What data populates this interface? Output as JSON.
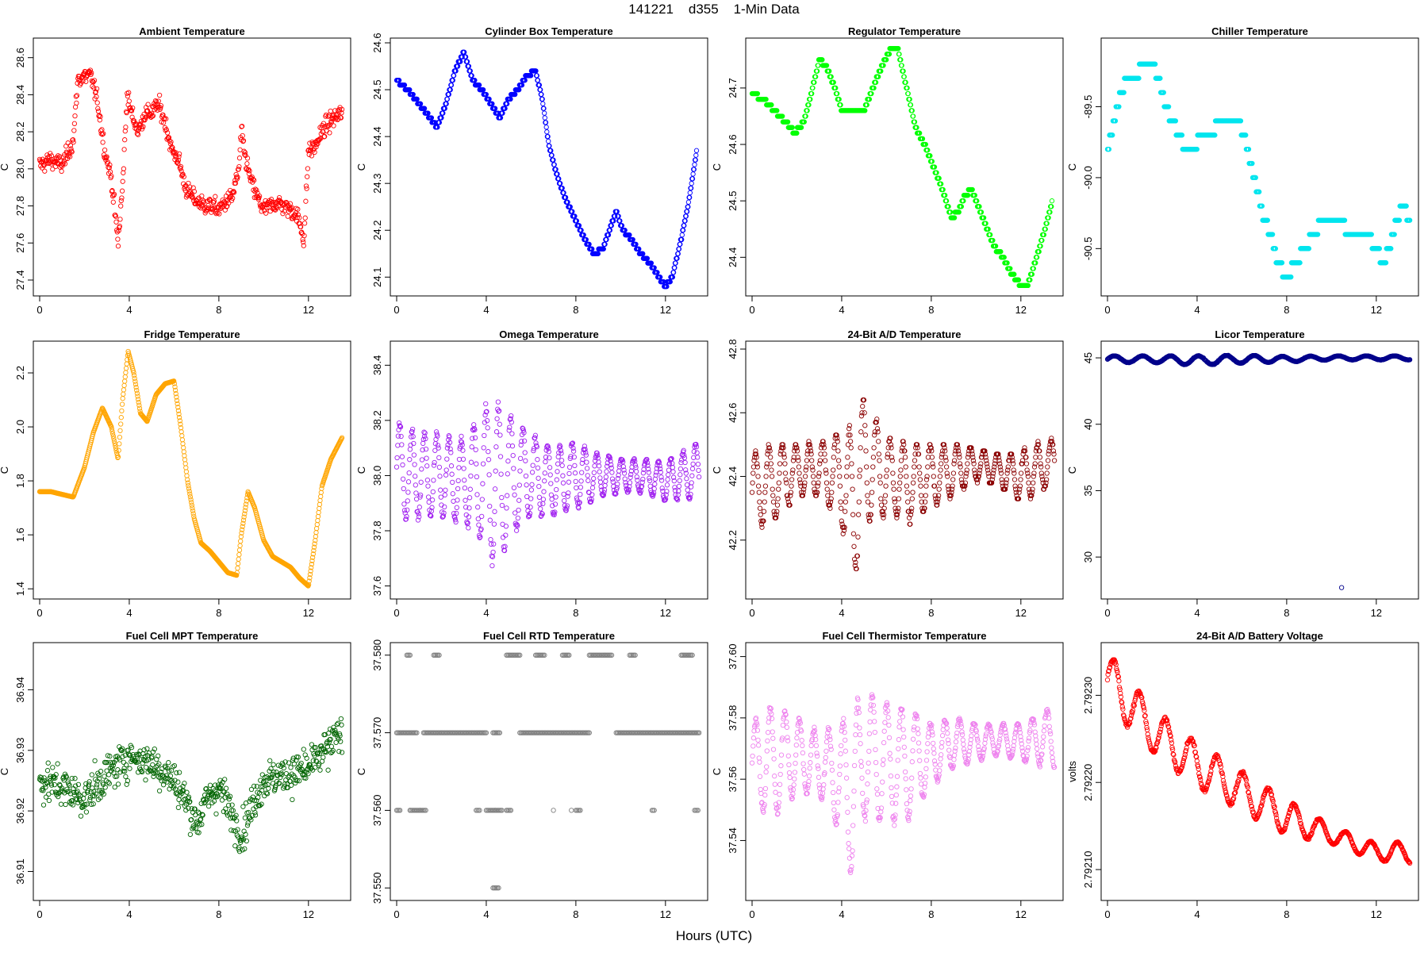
{
  "figure": {
    "title": "141221    d355    1-Min Data",
    "xlabel": "Hours (UTC)"
  },
  "chart_data": [
    {
      "type": "scatter",
      "title": "Ambient Temperature",
      "ylabel": "C",
      "color": "#ff0000",
      "xlim": [
        0,
        13.6
      ],
      "xticks": [
        0,
        4,
        8,
        12
      ],
      "ylim": [
        27.34,
        28.68
      ],
      "yticks": [
        27.4,
        27.6,
        27.8,
        28.0,
        28.2,
        28.4,
        28.6
      ],
      "ytick_labels": [
        "27.4",
        "27.6",
        "27.8",
        "28.0",
        "28.2",
        "28.4",
        "28.6"
      ],
      "mode": "noisy",
      "noise": 0.06,
      "x": [
        0,
        0.5,
        1,
        1.5,
        1.7,
        2,
        2.3,
        2.6,
        2.9,
        3.2,
        3.5,
        3.7,
        3.9,
        4.1,
        4.4,
        4.7,
        5,
        5.3,
        5.6,
        5.9,
        6.2,
        6.5,
        6.8,
        7.1,
        7.4,
        7.7,
        8,
        8.3,
        8.6,
        8.9,
        9,
        9.2,
        9.4,
        9.7,
        10,
        10.3,
        10.6,
        10.9,
        11.2,
        11.5,
        11.8,
        12,
        12.3,
        12.6,
        12.9,
        13.2,
        13.5
      ],
      "y": [
        28.02,
        28.05,
        28.02,
        28.15,
        28.48,
        28.5,
        28.5,
        28.35,
        28.1,
        27.95,
        27.6,
        27.9,
        28.4,
        28.3,
        28.2,
        28.3,
        28.3,
        28.35,
        28.25,
        28.1,
        28.05,
        27.9,
        27.85,
        27.82,
        27.8,
        27.8,
        27.78,
        27.82,
        27.85,
        28.0,
        28.2,
        28.05,
        27.95,
        27.85,
        27.78,
        27.8,
        27.82,
        27.8,
        27.78,
        27.75,
        27.62,
        28.1,
        28.12,
        28.2,
        28.25,
        28.28,
        28.3
      ]
    },
    {
      "type": "scatter",
      "title": "Cylinder Box Temperature",
      "ylabel": "C",
      "color": "#0000ff",
      "xlim": [
        0,
        13.6
      ],
      "xticks": [
        0,
        4,
        8,
        12
      ],
      "ylim": [
        24.07,
        24.6
      ],
      "yticks": [
        24.1,
        24.2,
        24.3,
        24.4,
        24.5,
        24.6
      ],
      "ytick_labels": [
        "24.1",
        "24.2",
        "24.3",
        "24.4",
        "24.5",
        "24.6"
      ],
      "mode": "smooth",
      "quantum": 0.01,
      "x": [
        0,
        0.5,
        1,
        1.5,
        1.8,
        2.2,
        2.6,
        3,
        3.4,
        3.8,
        4.2,
        4.6,
        5,
        5.4,
        5.8,
        6.2,
        6.5,
        6.8,
        7.2,
        7.6,
        8,
        8.4,
        8.8,
        9.2,
        9.5,
        9.8,
        10.1,
        10.5,
        10.9,
        11.3,
        11.7,
        12,
        12.3,
        12.7,
        13,
        13.4
      ],
      "y": [
        24.52,
        24.5,
        24.47,
        24.44,
        24.42,
        24.47,
        24.54,
        24.58,
        24.52,
        24.5,
        24.47,
        24.44,
        24.48,
        24.5,
        24.53,
        24.54,
        24.48,
        24.38,
        24.31,
        24.26,
        24.22,
        24.18,
        24.15,
        24.16,
        24.2,
        24.24,
        24.2,
        24.18,
        24.15,
        24.13,
        24.1,
        24.08,
        24.1,
        24.18,
        24.25,
        24.37
      ]
    },
    {
      "type": "scatter",
      "title": "Regulator Temperature",
      "ylabel": "C",
      "color": "#00ff00",
      "xlim": [
        0,
        13.6
      ],
      "xticks": [
        0,
        4,
        8,
        12
      ],
      "ylim": [
        24.34,
        24.78
      ],
      "yticks": [
        24.4,
        24.5,
        24.6,
        24.7
      ],
      "ytick_labels": [
        "24.4",
        "24.5",
        "24.6",
        "24.7"
      ],
      "mode": "smooth",
      "quantum": 0.01,
      "x": [
        0,
        0.5,
        1,
        1.5,
        1.9,
        2.3,
        2.7,
        3,
        3.3,
        3.7,
        4,
        4.5,
        5,
        5.4,
        5.8,
        6.2,
        6.5,
        6.9,
        7.3,
        7.7,
        8.1,
        8.5,
        8.9,
        9.2,
        9.5,
        9.8,
        10,
        10.4,
        10.8,
        11.2,
        11.6,
        12,
        12.3,
        12.7,
        13,
        13.4
      ],
      "y": [
        24.69,
        24.68,
        24.66,
        24.64,
        24.62,
        24.64,
        24.7,
        24.75,
        24.74,
        24.7,
        24.66,
        24.66,
        24.66,
        24.7,
        24.74,
        24.77,
        24.77,
        24.7,
        24.63,
        24.6,
        24.56,
        24.52,
        24.47,
        24.48,
        24.51,
        24.52,
        24.5,
        24.46,
        24.42,
        24.4,
        24.37,
        24.35,
        24.35,
        24.4,
        24.44,
        24.5
      ]
    },
    {
      "type": "scatter",
      "title": "Chiller Temperature",
      "ylabel": "C",
      "color": "#00e5ee",
      "xlim": [
        0,
        13.6
      ],
      "xticks": [
        0,
        4,
        8,
        12
      ],
      "ylim": [
        -90.8,
        -89.05
      ],
      "yticks": [
        -90.5,
        -90.0,
        -89.5
      ],
      "ytick_labels": [
        "-90.5",
        "-90.0",
        "-89.5"
      ],
      "mode": "smooth",
      "quantum": 0.1,
      "x": [
        0,
        0.3,
        0.6,
        0.9,
        1.2,
        1.6,
        2,
        2.3,
        2.6,
        2.9,
        3.2,
        3.5,
        3.8,
        4.2,
        4.6,
        5,
        5.4,
        5.8,
        6.1,
        6.4,
        6.7,
        7,
        7.3,
        7.6,
        8,
        8.4,
        8.8,
        9.2,
        9.6,
        10,
        10.4,
        10.8,
        11.2,
        11.6,
        12,
        12.3,
        12.6,
        12.9,
        13.2,
        13.5
      ],
      "y": [
        -89.8,
        -89.6,
        -89.4,
        -89.3,
        -89.3,
        -89.2,
        -89.2,
        -89.3,
        -89.5,
        -89.6,
        -89.7,
        -89.8,
        -89.8,
        -89.7,
        -89.7,
        -89.6,
        -89.6,
        -89.6,
        -89.7,
        -89.9,
        -90.1,
        -90.3,
        -90.4,
        -90.6,
        -90.7,
        -90.6,
        -90.5,
        -90.4,
        -90.3,
        -90.3,
        -90.3,
        -90.4,
        -90.4,
        -90.4,
        -90.5,
        -90.6,
        -90.5,
        -90.3,
        -90.2,
        -90.3
      ]
    },
    {
      "type": "scatter",
      "title": "Fridge Temperature",
      "ylabel": "C",
      "color": "#ffa500",
      "xlim": [
        0,
        13.6
      ],
      "xticks": [
        0,
        4,
        8,
        12
      ],
      "ylim": [
        1.38,
        2.3
      ],
      "yticks": [
        1.4,
        1.6,
        1.8,
        2.0,
        2.2
      ],
      "ytick_labels": [
        "1.4",
        "1.6",
        "1.8",
        "2.0",
        "2.2"
      ],
      "mode": "smooth",
      "quantum": 0,
      "x": [
        0,
        0.5,
        1,
        1.5,
        2,
        2.4,
        2.8,
        3.2,
        3.5,
        3.7,
        3.95,
        4.2,
        4.5,
        4.8,
        5.2,
        5.6,
        6,
        6.3,
        6.6,
        6.9,
        7.2,
        7.6,
        8,
        8.4,
        8.8,
        9,
        9.3,
        9.6,
        10,
        10.4,
        10.8,
        11.2,
        11.6,
        12,
        12.3,
        12.6,
        13,
        13.5
      ],
      "y": [
        1.76,
        1.76,
        1.75,
        1.74,
        1.85,
        1.98,
        2.07,
        2.0,
        1.88,
        2.1,
        2.28,
        2.2,
        2.05,
        2.02,
        2.12,
        2.16,
        2.17,
        2.0,
        1.8,
        1.66,
        1.57,
        1.54,
        1.5,
        1.46,
        1.45,
        1.6,
        1.76,
        1.7,
        1.58,
        1.52,
        1.5,
        1.48,
        1.44,
        1.41,
        1.58,
        1.78,
        1.88,
        1.96
      ]
    },
    {
      "type": "scatter",
      "title": "Omega Temperature",
      "ylabel": "C",
      "color": "#a020f0",
      "xlim": [
        0,
        13.6
      ],
      "xticks": [
        0,
        4,
        8,
        12
      ],
      "ylim": [
        37.57,
        38.47
      ],
      "yticks": [
        37.6,
        37.8,
        38.0,
        38.2,
        38.4
      ],
      "ytick_labels": [
        "37.6",
        "37.8",
        "38.0",
        "38.2",
        "38.4"
      ],
      "mode": "osc",
      "period": 0.55,
      "x": [
        0,
        1,
        2,
        3,
        4,
        4.5,
        5,
        6,
        7,
        8,
        9,
        10,
        11,
        12,
        13.5
      ],
      "y": [
        38.02,
        38.0,
        38.0,
        37.98,
        38.0,
        37.95,
        38.0,
        38.0,
        37.98,
        38.0,
        38.0,
        38.0,
        38.0,
        37.98,
        38.02
      ],
      "amp": [
        0.18,
        0.15,
        0.15,
        0.15,
        0.25,
        0.3,
        0.22,
        0.15,
        0.12,
        0.12,
        0.08,
        0.06,
        0.06,
        0.07,
        0.1
      ]
    },
    {
      "type": "scatter",
      "title": "24-Bit A/D Temperature",
      "ylabel": "C",
      "color": "#8b0000",
      "xlim": [
        0,
        13.6
      ],
      "xticks": [
        0,
        4,
        8,
        12
      ],
      "ylim": [
        42.03,
        42.81
      ],
      "yticks": [
        42.2,
        42.4,
        42.6,
        42.8
      ],
      "ytick_labels": [
        "42.2",
        "42.4",
        "42.6",
        "42.8"
      ],
      "mode": "osc",
      "period": 0.6,
      "quantum": 0.01,
      "x": [
        0,
        1,
        2,
        3,
        4,
        4.5,
        5,
        6,
        7,
        8,
        9,
        10,
        11,
        12,
        13.5
      ],
      "y": [
        42.35,
        42.38,
        42.42,
        42.42,
        42.4,
        42.3,
        42.45,
        42.4,
        42.38,
        42.4,
        42.42,
        42.44,
        42.42,
        42.4,
        42.45
      ],
      "amp": [
        0.12,
        0.12,
        0.08,
        0.08,
        0.15,
        0.25,
        0.2,
        0.12,
        0.12,
        0.1,
        0.08,
        0.05,
        0.05,
        0.08,
        0.07
      ]
    },
    {
      "type": "scatter",
      "title": "Licor Temperature",
      "ylabel": "C",
      "color": "#00008b",
      "xlim": [
        0,
        13.6
      ],
      "xticks": [
        0,
        4,
        8,
        12
      ],
      "ylim": [
        27.2,
        45.9
      ],
      "yticks": [
        30,
        35,
        40,
        45
      ],
      "ytick_labels": [
        "30",
        "35",
        "40",
        "45"
      ],
      "mode": "osc",
      "period": 1.25,
      "x": [
        0,
        2,
        4,
        6,
        8,
        10,
        12,
        13.5
      ],
      "y": [
        44.9,
        44.9,
        44.8,
        44.9,
        44.9,
        45.0,
        45.0,
        45.0
      ],
      "amp": [
        0.25,
        0.25,
        0.35,
        0.3,
        0.2,
        0.15,
        0.15,
        0.15
      ],
      "outliers": [
        [
          10.45,
          27.7
        ]
      ]
    },
    {
      "type": "scatter",
      "title": "Fuel Cell MPT Temperature",
      "ylabel": "C",
      "color": "#006400",
      "xlim": [
        0,
        13.6
      ],
      "xticks": [
        0,
        4,
        8,
        12
      ],
      "ylim": [
        36.906,
        36.947
      ],
      "yticks": [
        36.91,
        36.92,
        36.93,
        36.94
      ],
      "ytick_labels": [
        "36.91",
        "36.92",
        "36.93",
        "36.94"
      ],
      "mode": "noisy",
      "noise": 0.004,
      "x": [
        0,
        1,
        2,
        3,
        4,
        5,
        6,
        6.5,
        7,
        7.5,
        8,
        8.5,
        9,
        9.5,
        10,
        11,
        12,
        13.5
      ],
      "y": [
        36.925,
        36.924,
        36.922,
        36.926,
        36.929,
        36.928,
        36.925,
        36.922,
        36.918,
        36.922,
        36.924,
        36.92,
        36.916,
        36.921,
        36.925,
        36.926,
        36.927,
        36.933
      ]
    },
    {
      "type": "scatter",
      "title": "Fuel Cell RTD Temperature",
      "ylabel": "C",
      "color": "#808080",
      "xlim": [
        0,
        13.6
      ],
      "xticks": [
        0,
        4,
        8,
        12
      ],
      "ylim": [
        37.549,
        37.581
      ],
      "yticks": [
        37.55,
        37.56,
        37.57,
        37.58
      ],
      "ytick_labels": [
        "37.550",
        "37.560",
        "37.570",
        "37.580"
      ],
      "mode": "segments",
      "segments": [
        {
          "y": 37.57,
          "ranges": [
            [
              0,
              0.9
            ],
            [
              1.2,
              4.0
            ],
            [
              4.3,
              4.6
            ],
            [
              5.5,
              8.6
            ],
            [
              9.8,
              13.5
            ]
          ]
        },
        {
          "y": 37.58,
          "ranges": [
            [
              0.45,
              0.6
            ],
            [
              1.65,
              1.9
            ],
            [
              4.9,
              5.5
            ],
            [
              6.2,
              6.6
            ],
            [
              7.4,
              7.7
            ],
            [
              8.6,
              9.6
            ],
            [
              10.4,
              10.65
            ],
            [
              12.7,
              13.2
            ]
          ]
        },
        {
          "y": 37.56,
          "ranges": [
            [
              0,
              0.15
            ],
            [
              0.6,
              1.3
            ],
            [
              3.55,
              3.7
            ],
            [
              4.0,
              4.7
            ],
            [
              4.9,
              5.1
            ],
            [
              8.0,
              8.15
            ],
            [
              11.4,
              11.5
            ],
            [
              13.3,
              13.45
            ]
          ]
        },
        {
          "y": 37.55,
          "ranges": [
            [
              4.3,
              4.55
            ]
          ]
        }
      ],
      "extra": [
        [
          0.6,
          37.56
        ],
        [
          1.05,
          37.56
        ],
        [
          4.4,
          37.56
        ],
        [
          7.8,
          37.56
        ],
        [
          8.2,
          37.56
        ],
        [
          7.0,
          37.56
        ]
      ]
    },
    {
      "type": "scatter",
      "title": "Fuel Cell Thermistor Temperature",
      "ylabel": "C",
      "color": "#ee82ee",
      "xlim": [
        0,
        13.6
      ],
      "xticks": [
        0,
        4,
        8,
        12
      ],
      "ylim": [
        37.522,
        37.603
      ],
      "yticks": [
        37.54,
        37.56,
        37.58,
        37.6
      ],
      "ytick_labels": [
        "37.54",
        "37.56",
        "37.58",
        "37.60"
      ],
      "mode": "osc",
      "period": 0.65,
      "x": [
        0,
        1,
        2,
        3,
        4,
        4.5,
        5,
        6,
        7,
        8,
        9,
        10,
        11,
        12,
        13.5
      ],
      "y": [
        37.565,
        37.566,
        37.568,
        37.565,
        37.56,
        37.555,
        37.568,
        37.565,
        37.565,
        37.568,
        37.572,
        37.572,
        37.573,
        37.572,
        37.574
      ],
      "amp": [
        0.014,
        0.018,
        0.012,
        0.01,
        0.018,
        0.028,
        0.02,
        0.02,
        0.018,
        0.01,
        0.008,
        0.006,
        0.005,
        0.006,
        0.01
      ]
    },
    {
      "type": "scatter",
      "title": "24-Bit A/D Battery Voltage",
      "ylabel": "volts",
      "color": "#ff0000",
      "xlim": [
        0,
        13.6
      ],
      "xticks": [
        0,
        4,
        8,
        12
      ],
      "ylim": [
        2.79207,
        2.792355
      ],
      "yticks": [
        2.7921,
        2.7922,
        2.7923
      ],
      "ytick_labels": [
        "2.79210",
        "2.79220",
        "2.79230"
      ],
      "mode": "osc",
      "period": 1.15,
      "x": [
        0,
        2,
        4,
        6,
        8,
        10,
        12,
        13.5
      ],
      "y": [
        2.79232,
        2.79226,
        2.79222,
        2.79219,
        2.79216,
        2.79214,
        2.79212,
        2.79212
      ],
      "amp": [
        3e-05,
        2.5e-05,
        2.5e-05,
        2.2e-05,
        2e-05,
        1e-05,
        1e-05,
        1.2e-05
      ]
    }
  ]
}
